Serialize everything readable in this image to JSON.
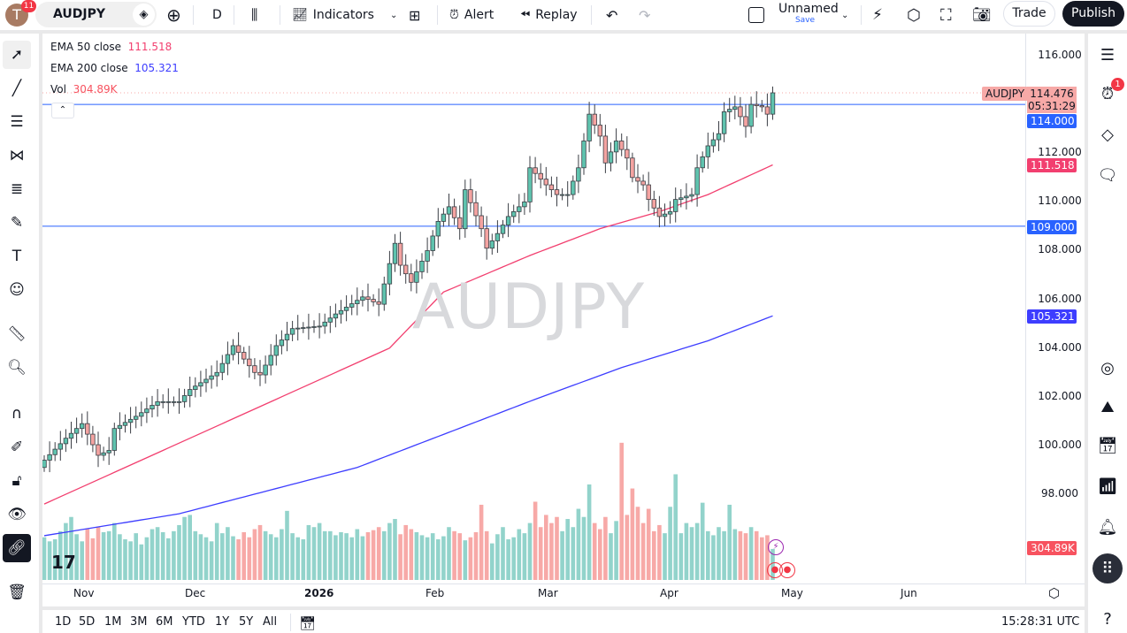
{
  "topbar": {
    "avatar_letter": "T",
    "notif_count": "11",
    "symbol": "AUDJPY",
    "interval": "D",
    "indicators": "Indicators",
    "alert": "Alert",
    "replay": "Replay",
    "layout_name": "Unnamed",
    "save": "Save",
    "trade": "Trade",
    "publish": "Publish"
  },
  "legend": {
    "ema50_label": "EMA 50 close",
    "ema50_value": "111.518",
    "ema200_label": "EMA 200 close",
    "ema200_value": "105.321",
    "vol_label": "Vol",
    "vol_value": "304.89K"
  },
  "watermark": "AUDJPY",
  "price_axis": {
    "ticks": [
      "116.000",
      "112.000",
      "110.000",
      "108.000",
      "106.000",
      "104.000",
      "102.000",
      "100.000",
      "98.000"
    ],
    "symbol_tag": "AUDJPY",
    "last_price": "114.476",
    "countdown": "05:31:29",
    "hline_1": "114.000",
    "ema50_tag": "111.518",
    "hline_2": "109.000",
    "ema200_tag": "105.321",
    "vol_tag": "304.89K"
  },
  "time_axis": [
    "Nov",
    "Dec",
    "2026",
    "Feb",
    "Mar",
    "Apr",
    "May",
    "Jun"
  ],
  "bottom": {
    "ranges": [
      "1D",
      "5D",
      "1M",
      "3M",
      "6M",
      "YTD",
      "1Y",
      "5Y",
      "All"
    ],
    "clock": "15:28:31 UTC"
  },
  "right_sidebar": {
    "alert_badge": "1"
  },
  "colors": {
    "up": "#5fc3ae",
    "down": "#f4a3a1",
    "ema50": "#f23f6f",
    "ema200": "#3d3dff",
    "hline": "#2962ff",
    "vol_up": "#92d3cb",
    "vol_down": "#f7a9a7"
  },
  "chart_data": {
    "type": "candlestick",
    "symbol": "AUDJPY",
    "ylim": [
      95,
      117
    ],
    "close_keypoints": [
      [
        0,
        99.4
      ],
      [
        4,
        100.3
      ],
      [
        7,
        100.9
      ],
      [
        10,
        99.6
      ],
      [
        12,
        99.8
      ],
      [
        13,
        100.7
      ],
      [
        17,
        101.2
      ],
      [
        21,
        101.8
      ],
      [
        25,
        101.8
      ],
      [
        27,
        102.3
      ],
      [
        32,
        103.0
      ],
      [
        35,
        104.1
      ],
      [
        39,
        103.0
      ],
      [
        40,
        102.9
      ],
      [
        43,
        104.1
      ],
      [
        46,
        104.8
      ],
      [
        51,
        104.9
      ],
      [
        54,
        105.4
      ],
      [
        59,
        106.1
      ],
      [
        62,
        105.8
      ],
      [
        65,
        108.3
      ],
      [
        66,
        107.4
      ],
      [
        68,
        106.7
      ],
      [
        71,
        108.0
      ],
      [
        73,
        109.2
      ],
      [
        75,
        109.8
      ],
      [
        77,
        108.9
      ],
      [
        78,
        110.5
      ],
      [
        81,
        108.9
      ],
      [
        82,
        108.1
      ],
      [
        84,
        108.7
      ],
      [
        86,
        109.4
      ],
      [
        89,
        110.0
      ],
      [
        90,
        111.4
      ],
      [
        93,
        110.7
      ],
      [
        95,
        110.3
      ],
      [
        97,
        110.3
      ],
      [
        99,
        111.4
      ],
      [
        100,
        112.5
      ],
      [
        101,
        113.6
      ],
      [
        103,
        112.7
      ],
      [
        104,
        111.6
      ],
      [
        106,
        112.5
      ],
      [
        108,
        111.8
      ],
      [
        109,
        111.0
      ],
      [
        111,
        110.7
      ],
      [
        112,
        110.1
      ],
      [
        114,
        109.4
      ],
      [
        116,
        109.6
      ],
      [
        117,
        110.1
      ],
      [
        120,
        110.3
      ],
      [
        121,
        111.4
      ],
      [
        123,
        112.3
      ],
      [
        125,
        112.8
      ],
      [
        126,
        113.7
      ],
      [
        128,
        113.9
      ],
      [
        130,
        113.1
      ],
      [
        131,
        114.0
      ],
      [
        133,
        113.9
      ],
      [
        134,
        113.6
      ],
      [
        135,
        114.476
      ]
    ],
    "ema50_keypoints": [
      [
        0,
        97.6
      ],
      [
        25,
        100.1
      ],
      [
        51,
        102.7
      ],
      [
        64,
        104.0
      ],
      [
        74,
        106.3
      ],
      [
        90,
        107.8
      ],
      [
        103,
        108.9
      ],
      [
        114,
        109.6
      ],
      [
        123,
        110.3
      ],
      [
        135,
        111.518
      ]
    ],
    "ema200_keypoints": [
      [
        0,
        96.3
      ],
      [
        25,
        97.2
      ],
      [
        58,
        99.1
      ],
      [
        91,
        101.9
      ],
      [
        107,
        103.2
      ],
      [
        123,
        104.3
      ],
      [
        135,
        105.321
      ]
    ],
    "volume_k": [
      420,
      380,
      400,
      480,
      560,
      620,
      450,
      380,
      500,
      410,
      520,
      470,
      480,
      560,
      450,
      400,
      380,
      460,
      350,
      420,
      500,
      520,
      470,
      410,
      480,
      540,
      620,
      640,
      480,
      450,
      420,
      380,
      560,
      460,
      520,
      430,
      400,
      470,
      420,
      500,
      540,
      480,
      450,
      420,
      500,
      680,
      460,
      420,
      400,
      540,
      520,
      560,
      480,
      480,
      440,
      470,
      460,
      420,
      500,
      430,
      470,
      490,
      520,
      480,
      560,
      600,
      450,
      540,
      500,
      470,
      440,
      420,
      460,
      400,
      430,
      520,
      480,
      460,
      390,
      420,
      470,
      740,
      480,
      360,
      450,
      520,
      400,
      420,
      500,
      460,
      560,
      770,
      520,
      640,
      560,
      620,
      480,
      600,
      520,
      700,
      620,
      940,
      560,
      500,
      620,
      460,
      580,
      1350,
      640,
      900,
      720,
      560,
      700,
      480,
      540,
      460,
      720,
      1040,
      460,
      560,
      520,
      560,
      760,
      480,
      440,
      520,
      480,
      740,
      500,
      480,
      460,
      520,
      480,
      420,
      440,
      305
    ]
  }
}
